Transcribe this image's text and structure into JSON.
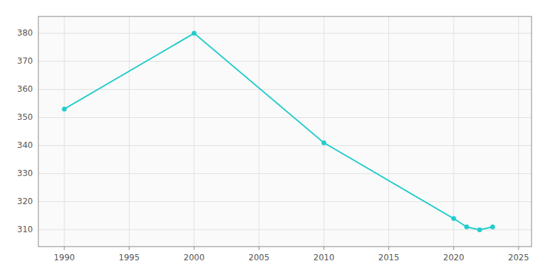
{
  "chart_data": {
    "type": "line",
    "x": [
      1990,
      2000,
      2010,
      2020,
      2021,
      2022,
      2023
    ],
    "values": [
      353,
      380,
      341,
      314,
      311,
      310,
      311
    ],
    "color": "#22CCCC",
    "marker": "circle",
    "xlim": [
      1988,
      2026
    ],
    "ylim": [
      304,
      386
    ],
    "xticks": [
      1990,
      1995,
      2000,
      2005,
      2010,
      2015,
      2020,
      2025
    ],
    "yticks": [
      310,
      320,
      330,
      340,
      350,
      360,
      370,
      380
    ],
    "grid": true
  }
}
